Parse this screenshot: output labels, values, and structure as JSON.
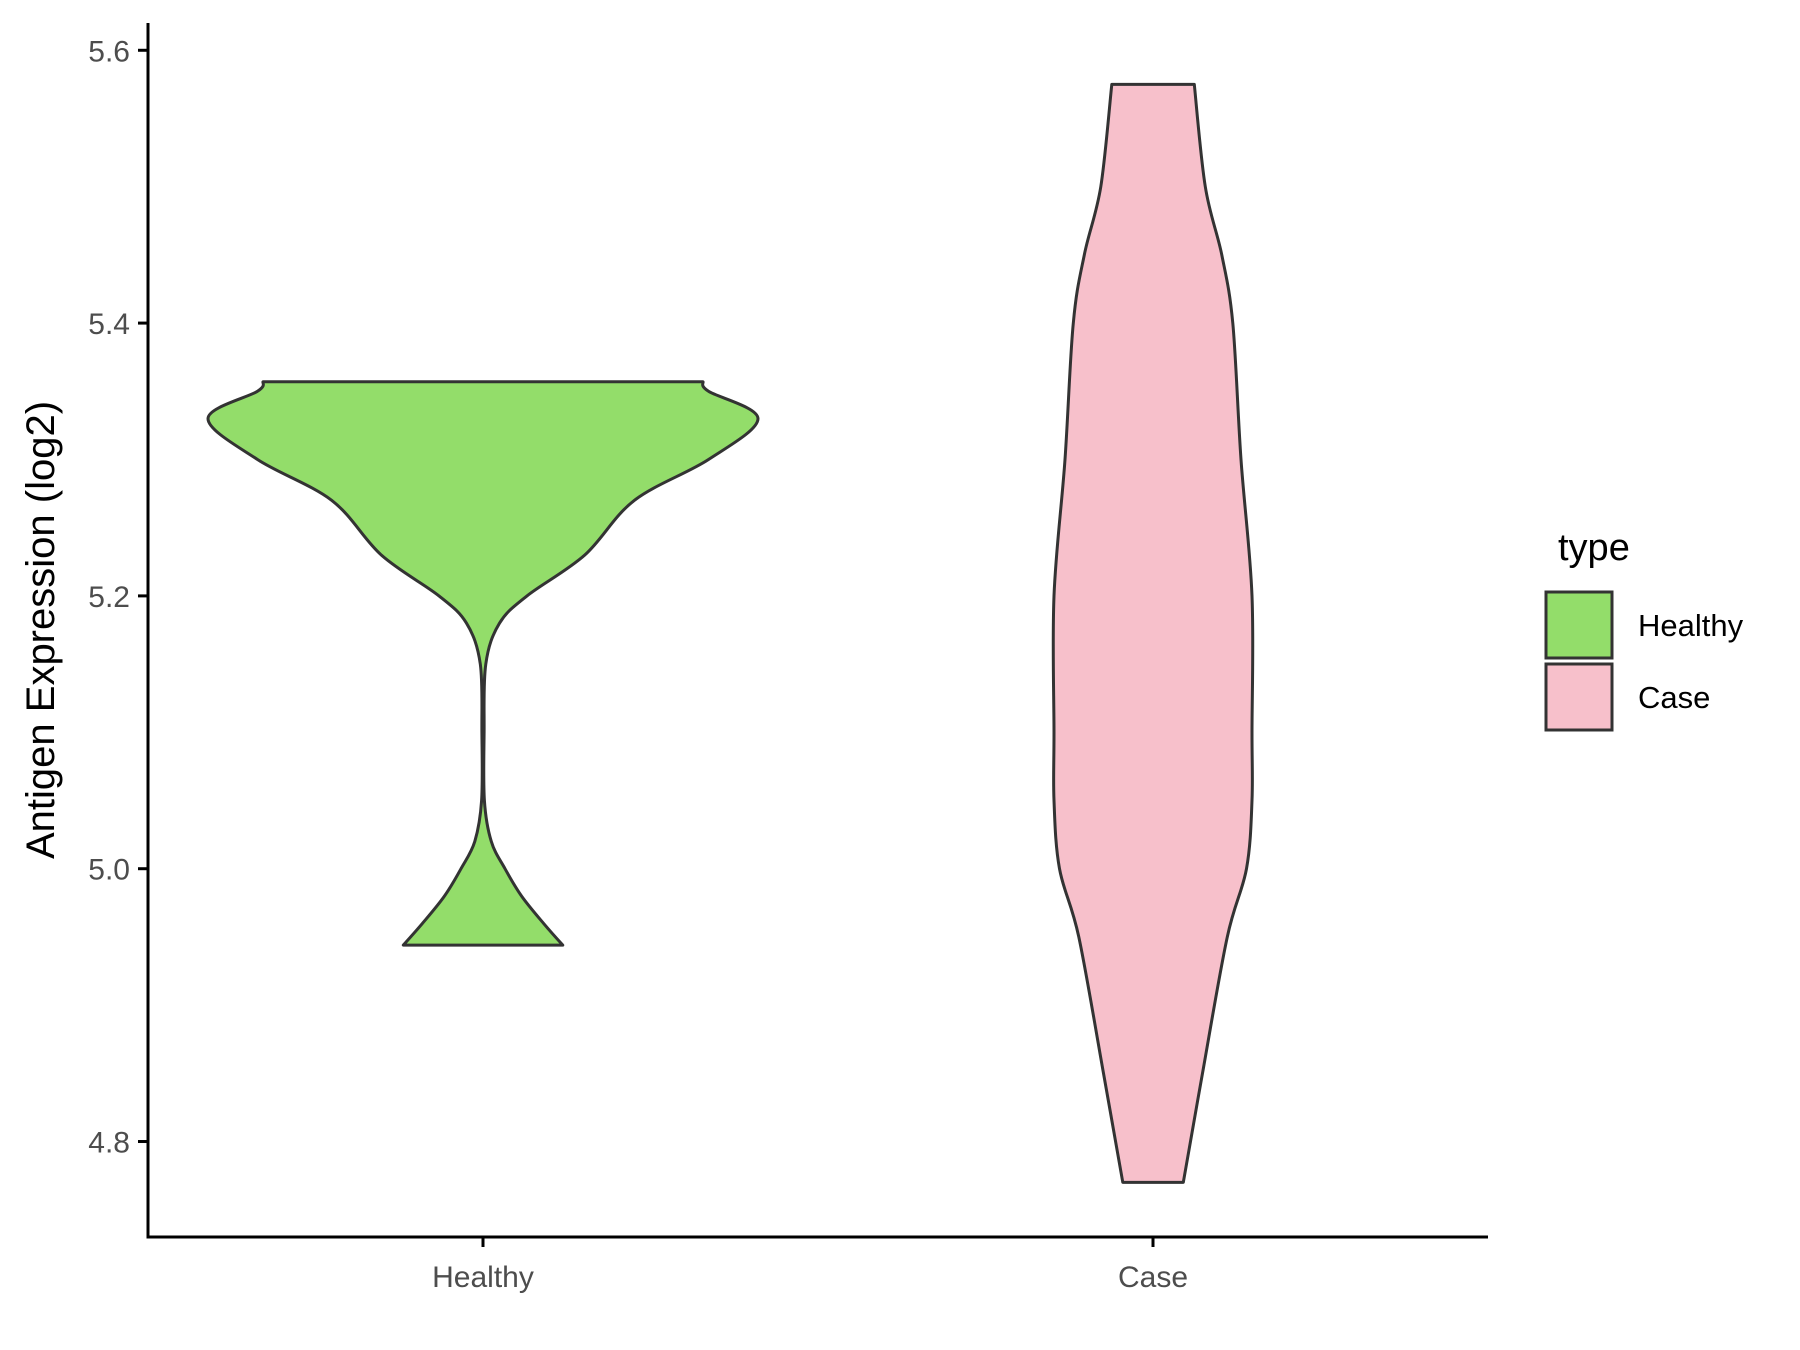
{
  "chart_data": {
    "type": "violin",
    "title": "",
    "xlabel": "",
    "ylabel": "Antigen Expression (log2)",
    "ylim": [
      4.73,
      5.62
    ],
    "yticks": [
      4.8,
      5.0,
      5.2,
      5.4,
      5.6
    ],
    "ytick_labels": [
      "4.8",
      "5.0",
      "5.2",
      "5.4",
      "5.6"
    ],
    "categories": [
      "Healthy",
      "Case"
    ],
    "grid": false,
    "legend": {
      "title": "type",
      "placement": "right",
      "entries": [
        "Healthy",
        "Case"
      ]
    },
    "series": [
      {
        "name": "Healthy",
        "color": "#93dd6a",
        "y_min": 4.944,
        "y_max": 5.357,
        "density_profile": [
          [
            4.944,
            0.29
          ],
          [
            4.96,
            0.22
          ],
          [
            4.98,
            0.14
          ],
          [
            5.0,
            0.08
          ],
          [
            5.02,
            0.03
          ],
          [
            5.05,
            0.005
          ],
          [
            5.1,
            0.004
          ],
          [
            5.15,
            0.01
          ],
          [
            5.18,
            0.06
          ],
          [
            5.2,
            0.16
          ],
          [
            5.23,
            0.37
          ],
          [
            5.27,
            0.55
          ],
          [
            5.3,
            0.82
          ],
          [
            5.33,
            1.0
          ],
          [
            5.35,
            0.82
          ],
          [
            5.357,
            0.8
          ]
        ]
      },
      {
        "name": "Case",
        "color": "#f7c0cb",
        "y_min": 4.77,
        "y_max": 5.575,
        "density_profile": [
          [
            4.77,
            0.11
          ],
          [
            4.85,
            0.18
          ],
          [
            4.95,
            0.27
          ],
          [
            5.0,
            0.34
          ],
          [
            5.05,
            0.36
          ],
          [
            5.1,
            0.36
          ],
          [
            5.2,
            0.36
          ],
          [
            5.3,
            0.32
          ],
          [
            5.4,
            0.29
          ],
          [
            5.45,
            0.25
          ],
          [
            5.5,
            0.19
          ],
          [
            5.575,
            0.15
          ]
        ]
      }
    ]
  }
}
